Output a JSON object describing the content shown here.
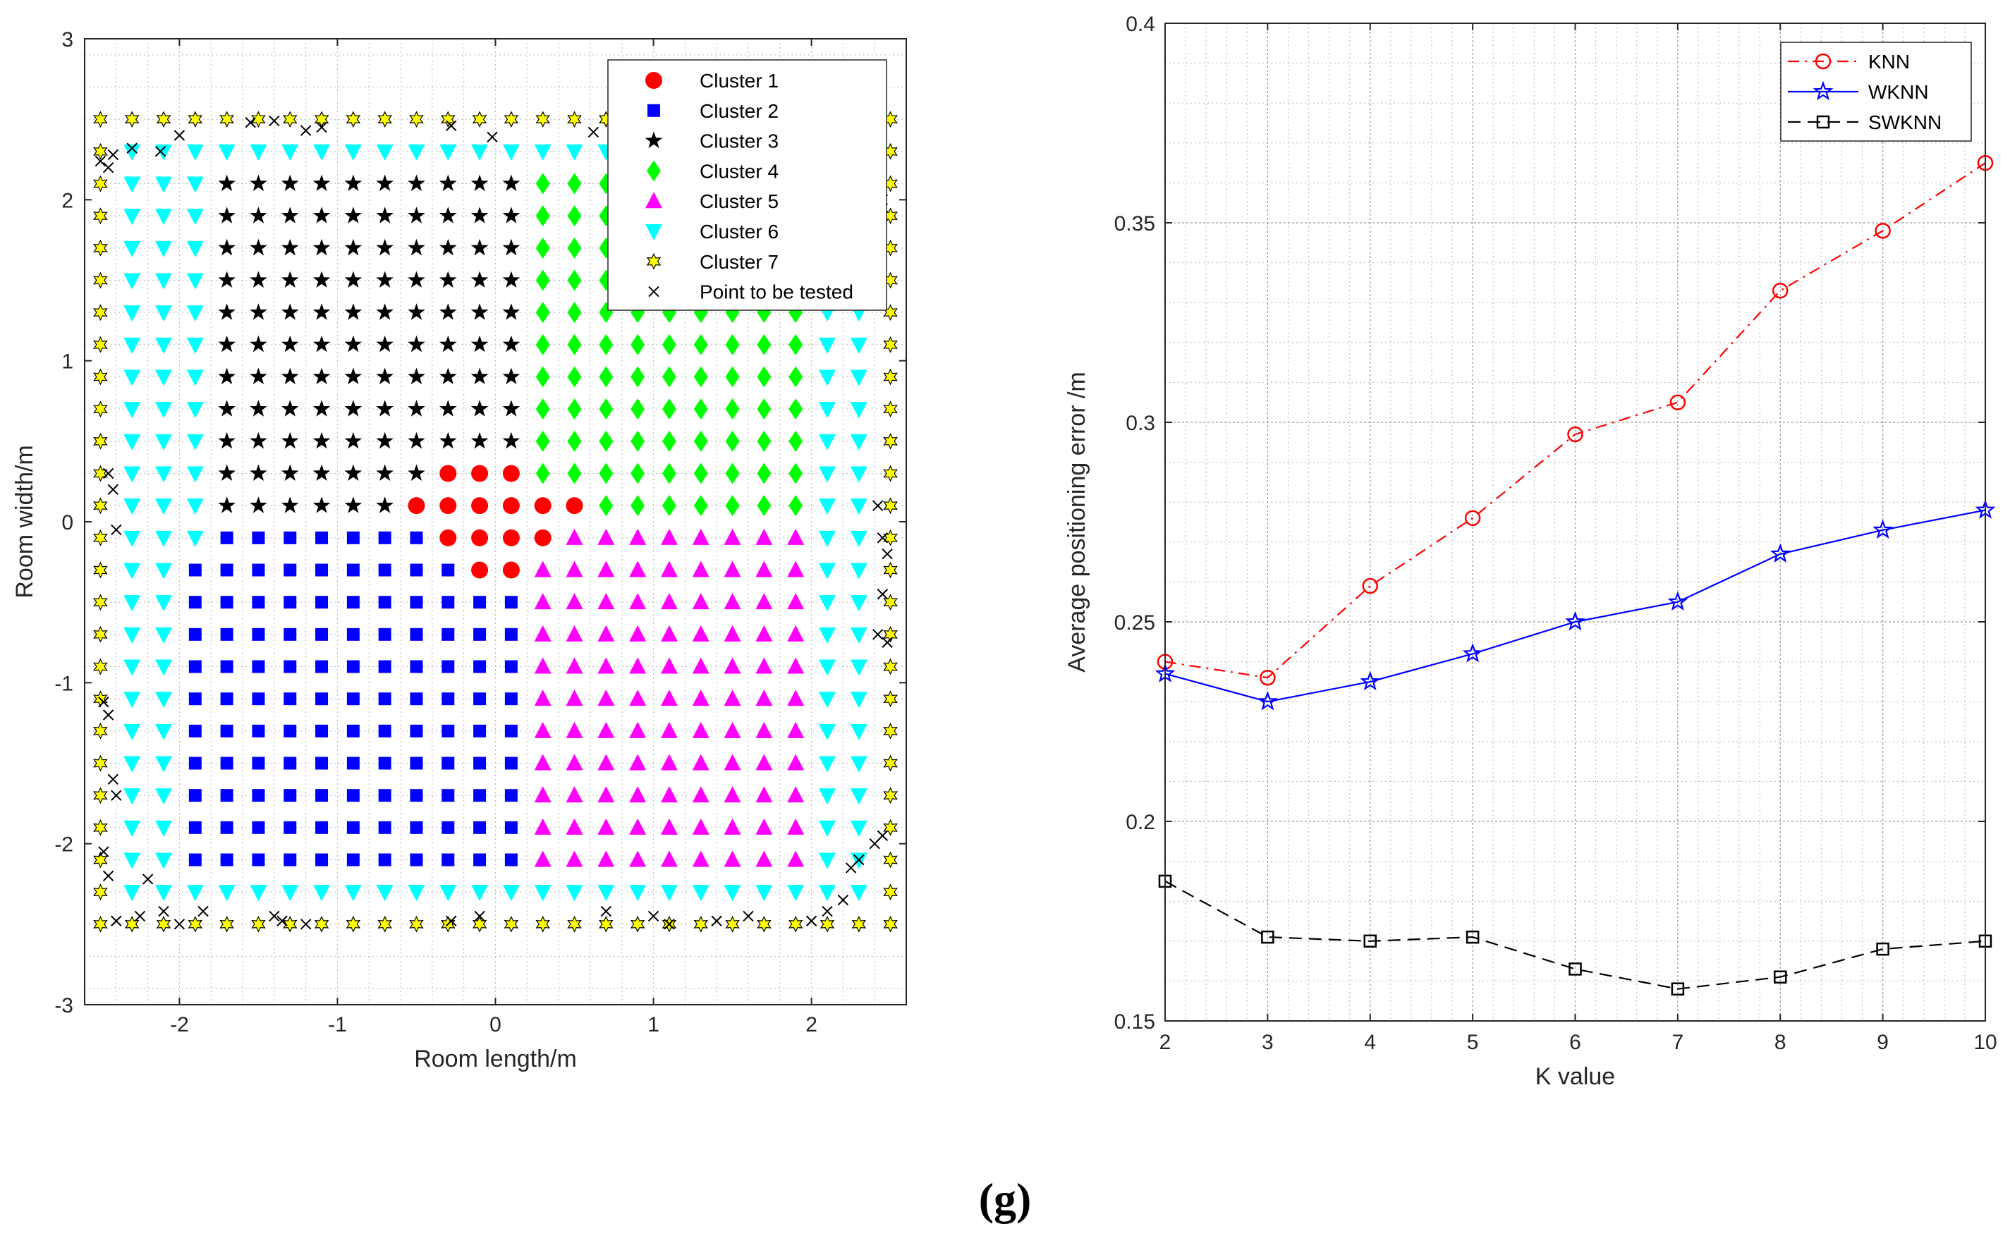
{
  "figure_label": "(g)",
  "colors": {
    "cluster1": "#ff0000",
    "cluster2": "#0000ff",
    "cluster3": "#000000",
    "cluster4": "#00ff00",
    "cluster5": "#ff00ff",
    "cluster6": "#00ffff",
    "cluster7": "#ffff00",
    "test": "#000000",
    "knn": "#ff0000",
    "wknn": "#0000ff",
    "swknn": "#000000"
  },
  "chart_data": [
    {
      "type": "scatter",
      "title": "",
      "xlabel": "Room length/m",
      "ylabel": "Room width/m",
      "xlim": [
        -2.6,
        2.6
      ],
      "ylim": [
        -3,
        3
      ],
      "xticks": [
        "-2",
        "-1",
        "0",
        "1",
        "2"
      ],
      "yticks": [
        "-3",
        "-2",
        "-1",
        "0",
        "1",
        "2",
        "3"
      ],
      "grid": "dotted",
      "legend_position": "top-right",
      "grid_spacing": 0.2,
      "grid_range": [
        -2.5,
        2.5
      ],
      "legend": [
        {
          "key": "cluster1",
          "label": "Cluster 1",
          "marker": "circle"
        },
        {
          "key": "cluster2",
          "label": "Cluster 2",
          "marker": "square"
        },
        {
          "key": "cluster3",
          "label": "Cluster 3",
          "marker": "star"
        },
        {
          "key": "cluster4",
          "label": "Cluster 4",
          "marker": "diamond"
        },
        {
          "key": "cluster5",
          "label": "Cluster 5",
          "marker": "triangle-up"
        },
        {
          "key": "cluster6",
          "label": "Cluster 6",
          "marker": "triangle-down"
        },
        {
          "key": "cluster7",
          "label": "Cluster 7",
          "marker": "hexagram"
        },
        {
          "key": "test",
          "label": "Point to be tested",
          "marker": "x"
        }
      ],
      "cluster_rule": {
        "cluster7": "outer ring |x| = 2.5 or |y| = 2.5",
        "cluster6": "second ring |x| = 2.3 or |y| = 2.3, plus x <= -1.9 for y >= -0.1 and right band x >= 2.1",
        "cluster1": [
          [
            -0.3,
            0.3
          ],
          [
            -0.1,
            0.3
          ],
          [
            0.1,
            0.3
          ],
          [
            -0.5,
            0.1
          ],
          [
            -0.3,
            0.1
          ],
          [
            -0.1,
            0.1
          ],
          [
            0.1,
            0.1
          ],
          [
            0.3,
            0.1
          ],
          [
            0.5,
            0.1
          ],
          [
            -0.3,
            -0.1
          ],
          [
            -0.1,
            -0.1
          ],
          [
            0.1,
            -0.1
          ],
          [
            0.3,
            -0.1
          ],
          [
            -0.1,
            -0.3
          ],
          [
            0.1,
            -0.3
          ]
        ],
        "cluster3": "upper-left region x < 0.3, y > 0",
        "cluster4": "upper-right region x >= 0.3, y > 0",
        "cluster2": "lower-left region x <= 0.1, y <= -0.1",
        "cluster5": "lower-right region x >= 0.1, y <= -0.1"
      },
      "test_points": [
        [
          -2.42,
          2.28
        ],
        [
          -2.3,
          2.32
        ],
        [
          -2.12,
          2.3
        ],
        [
          -2.0,
          2.4
        ],
        [
          -1.55,
          2.48
        ],
        [
          -1.4,
          2.49
        ],
        [
          -1.2,
          2.43
        ],
        [
          -1.1,
          2.45
        ],
        [
          -0.28,
          2.46
        ],
        [
          -0.02,
          2.39
        ],
        [
          0.62,
          2.42
        ],
        [
          -2.5,
          2.24
        ],
        [
          -2.45,
          2.2
        ],
        [
          -2.45,
          0.3
        ],
        [
          -2.42,
          0.2
        ],
        [
          -2.4,
          -0.05
        ],
        [
          -2.48,
          -1.12
        ],
        [
          -2.45,
          -1.2
        ],
        [
          -2.42,
          -1.6
        ],
        [
          -2.4,
          -1.7
        ],
        [
          -2.48,
          -2.05
        ],
        [
          -2.45,
          -2.2
        ],
        [
          -2.4,
          -2.48
        ],
        [
          -2.25,
          -2.45
        ],
        [
          -2.1,
          -2.42
        ],
        [
          -2.0,
          -2.5
        ],
        [
          -1.85,
          -2.42
        ],
        [
          -1.4,
          -2.45
        ],
        [
          -1.35,
          -2.48
        ],
        [
          -1.2,
          -2.5
        ],
        [
          -0.28,
          -2.48
        ],
        [
          -0.1,
          -2.45
        ],
        [
          0.7,
          -2.42
        ],
        [
          1.0,
          -2.45
        ],
        [
          1.1,
          -2.5
        ],
        [
          1.4,
          -2.48
        ],
        [
          1.6,
          -2.45
        ],
        [
          2.0,
          -2.48
        ],
        [
          2.1,
          -2.42
        ],
        [
          2.2,
          -2.35
        ],
        [
          2.25,
          -2.15
        ],
        [
          2.3,
          -2.1
        ],
        [
          2.4,
          -2.0
        ],
        [
          2.45,
          -1.95
        ],
        [
          2.45,
          -0.1
        ],
        [
          2.48,
          -0.2
        ],
        [
          2.42,
          0.1
        ],
        [
          2.45,
          -0.45
        ],
        [
          2.48,
          -0.75
        ],
        [
          2.42,
          -0.7
        ],
        [
          -2.2,
          -2.22
        ],
        [
          2.45,
          1.9
        ],
        [
          2.45,
          2.0
        ]
      ]
    },
    {
      "type": "line",
      "title": "",
      "xlabel": "K value",
      "ylabel": "Average positioning error /m",
      "xlim": [
        2,
        10
      ],
      "ylim": [
        0.15,
        0.4
      ],
      "xticks": [
        "2",
        "3",
        "4",
        "5",
        "6",
        "7",
        "8",
        "9",
        "10"
      ],
      "yticks": [
        "0.15",
        "0.2",
        "0.25",
        "0.3",
        "0.35",
        "0.4"
      ],
      "grid": "dotted",
      "legend_position": "top-right",
      "x": [
        2,
        3,
        4,
        5,
        6,
        7,
        8,
        9,
        10
      ],
      "series": [
        {
          "name": "KNN",
          "color_key": "knn",
          "marker": "circle",
          "dash": "dashdot",
          "values": [
            0.24,
            0.236,
            0.259,
            0.276,
            0.297,
            0.305,
            0.333,
            0.348,
            0.365
          ]
        },
        {
          "name": "WKNN",
          "color_key": "wknn",
          "marker": "pentagram",
          "dash": "solid",
          "values": [
            0.237,
            0.23,
            0.235,
            0.242,
            0.25,
            0.255,
            0.267,
            0.273,
            0.278
          ]
        },
        {
          "name": "SWKNN",
          "color_key": "swknn",
          "marker": "square",
          "dash": "dashed",
          "values": [
            0.185,
            0.171,
            0.17,
            0.171,
            0.163,
            0.158,
            0.161,
            0.168,
            0.17
          ]
        }
      ]
    }
  ]
}
